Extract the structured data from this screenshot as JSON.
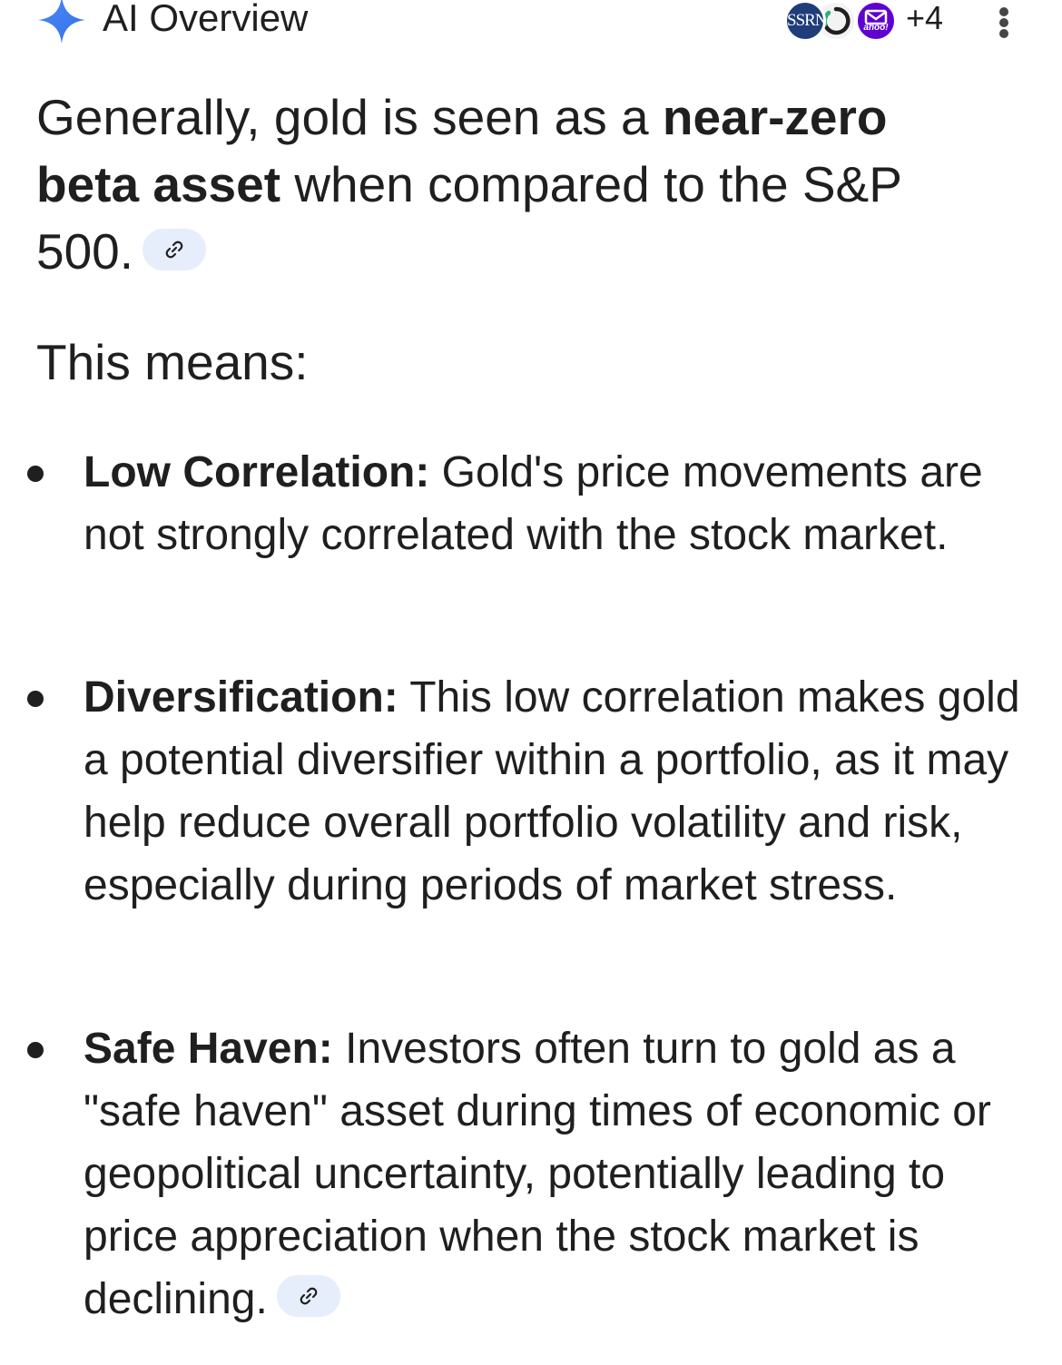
{
  "header": {
    "title": "AI Overview",
    "sources": {
      "icons": [
        "ssrn-logo-icon",
        "ring-logo-icon",
        "yahoo-mail-logo-icon"
      ],
      "ssrn_label": "SSRN",
      "yahoo_label": "ahoo!",
      "more_count": "+4"
    },
    "menu_icon": "more-vert-icon"
  },
  "intro": {
    "text_before": "Generally, gold is seen as a ",
    "bold": "near-zero beta asset",
    "text_after": " when compared to the S&P 500.",
    "link_icon": "link-icon"
  },
  "means_label": "This means:",
  "bullets": [
    {
      "title": "Low Correlation:",
      "text": " Gold's price movements are not strongly correlated with the stock market."
    },
    {
      "title": "Diversification:",
      "text": " This low correlation makes gold a potential diversifier within a portfolio, as it may help reduce overall portfolio volatility and risk, especially during periods of market stress."
    },
    {
      "title": "Safe Haven:",
      "text": " Investors often turn to gold as a \"safe haven\" asset during times of economic or geopolitical uncertainty, potentially leading to price appreciation when the stock market is declining.",
      "link_icon": "link-icon"
    }
  ],
  "colors": {
    "text": "#1f1f1f",
    "sparkle_blue": "#4285f4",
    "link_chip_bg": "#e6edfb",
    "ssrn_blue": "#1f3d7a",
    "yahoo_purple": "#6001d2"
  }
}
